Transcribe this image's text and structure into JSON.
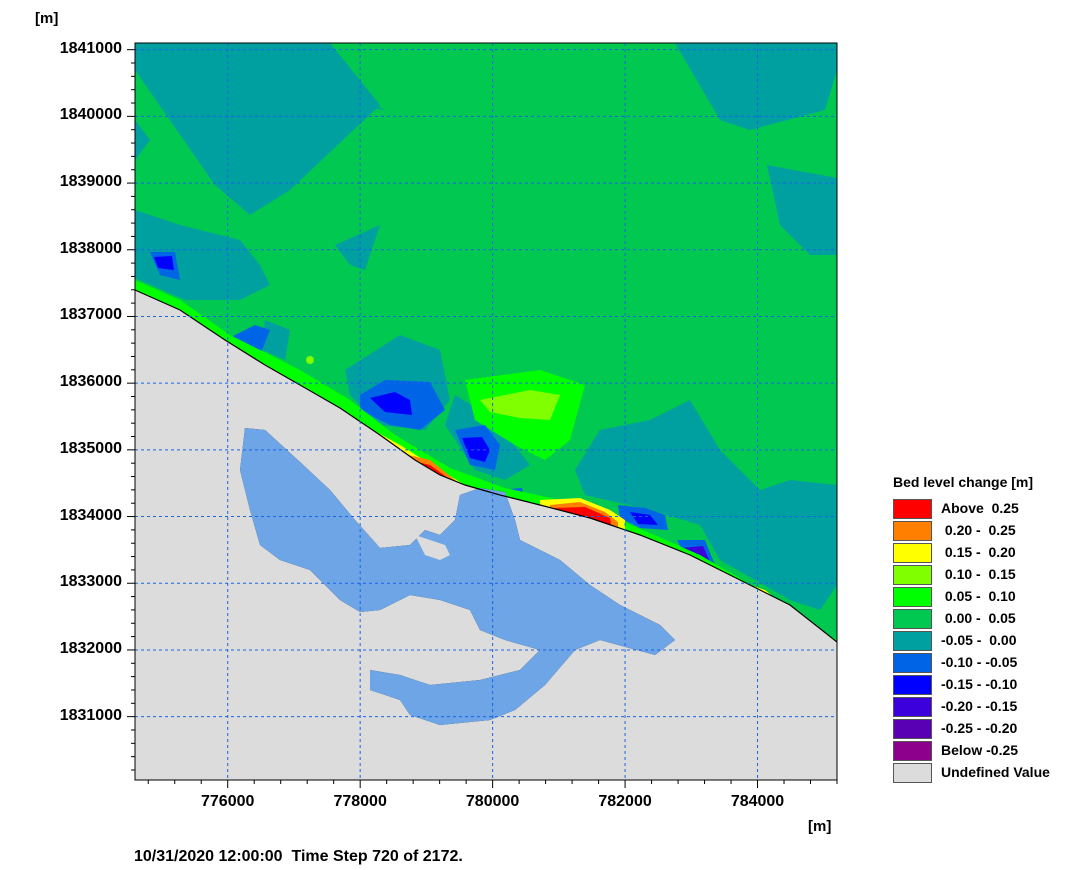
{
  "chart_data": {
    "type": "heatmap",
    "title": "",
    "x_unit": "[m]",
    "y_unit": "[m]",
    "xlim": [
      774600,
      785200
    ],
    "ylim": [
      1830050,
      1841100
    ],
    "x_ticks": [
      776000,
      778000,
      780000,
      782000,
      784000
    ],
    "x_tick_labels": [
      "776000",
      "778000",
      "780000",
      "782000",
      "784000"
    ],
    "y_ticks": [
      1831000,
      1832000,
      1833000,
      1834000,
      1835000,
      1836000,
      1837000,
      1838000,
      1839000,
      1840000,
      1841000
    ],
    "y_tick_labels": [
      "1831000",
      "1832000",
      "1833000",
      "1834000",
      "1835000",
      "1836000",
      "1837000",
      "1838000",
      "1839000",
      "1840000",
      "1841000"
    ],
    "grid": true,
    "legend_position": "right",
    "legend": {
      "title": "Bed level change [m]",
      "entries": [
        {
          "label": "Above  0.25",
          "color": "#ff0000"
        },
        {
          "label": " 0.20 -  0.25",
          "color": "#ff8000"
        },
        {
          "label": " 0.15 -  0.20",
          "color": "#ffff00"
        },
        {
          "label": " 0.10 -  0.15",
          "color": "#80ff00"
        },
        {
          "label": " 0.05 -  0.10",
          "color": "#00ff00"
        },
        {
          "label": " 0.00 -  0.05",
          "color": "#00c850"
        },
        {
          "label": "-0.05 -  0.00",
          "color": "#00a0a0"
        },
        {
          "label": "-0.10 - -0.05",
          "color": "#0064e6"
        },
        {
          "label": "-0.15 - -0.10",
          "color": "#0000ff"
        },
        {
          "label": "-0.20 - -0.15",
          "color": "#3c00dc"
        },
        {
          "label": "-0.25 - -0.20",
          "color": "#5a00b4"
        },
        {
          "label": "Below -0.25",
          "color": "#8c008c"
        },
        {
          "label": "Undefined Value",
          "color": "#dcdcdc"
        }
      ]
    }
  },
  "footer": {
    "datetime": "10/31/2020 12:00:00",
    "timestep": "Time Step 720 of 2172."
  }
}
